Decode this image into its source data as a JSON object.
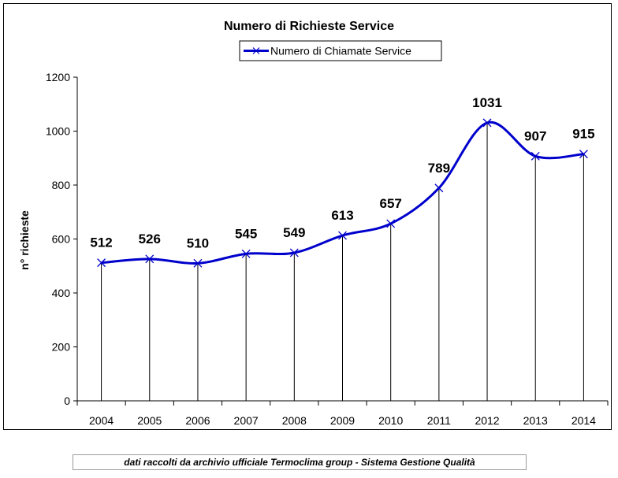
{
  "chart_data": {
    "type": "line",
    "title": "Numero di Richieste Service",
    "legend": {
      "label": "Numero di Chiamate Service",
      "placement": "top-center"
    },
    "xlabel": "",
    "ylabel": "n° richieste",
    "categories": [
      "2004",
      "2005",
      "2006",
      "2007",
      "2008",
      "2009",
      "2010",
      "2011",
      "2012",
      "2013",
      "2014"
    ],
    "series": [
      {
        "name": "Numero di Chiamate Service",
        "values": [
          512,
          526,
          510,
          545,
          549,
          613,
          657,
          789,
          1031,
          907,
          915
        ]
      }
    ],
    "ylim": [
      0,
      1200
    ],
    "yticks": [
      0,
      200,
      400,
      600,
      800,
      1000,
      1200
    ],
    "grid": false,
    "drop_lines": true,
    "colors": {
      "line": "#0000cc",
      "axis": "#000000",
      "text": "#000000"
    }
  },
  "footer": {
    "text": "dati raccolti da archivio ufficiale Termoclima group - Sistema Gestione Qualità"
  }
}
